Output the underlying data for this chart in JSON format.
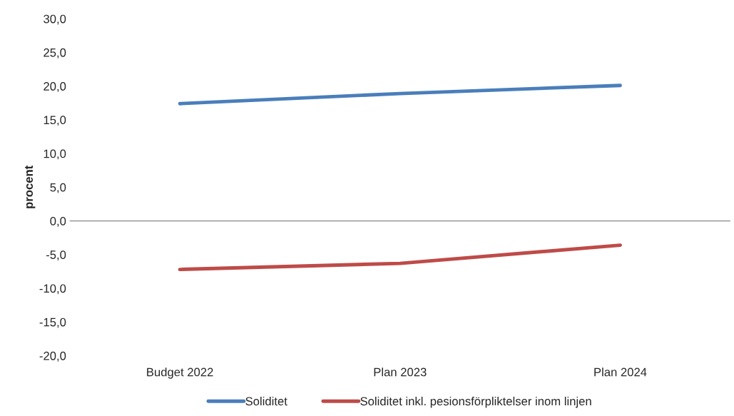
{
  "chart_data": {
    "type": "line",
    "ylabel": "procent",
    "categories": [
      "Budget 2022",
      "Plan 2023",
      "Plan 2024"
    ],
    "series": [
      {
        "name": "Soliditet",
        "color": "#4a7ebb",
        "values": [
          17.4,
          18.9,
          20.1
        ]
      },
      {
        "name": "Soliditet inkl. pesionsförpliktelser inom linjen",
        "color": "#be4b48",
        "values": [
          -7.2,
          -6.3,
          -3.6
        ]
      }
    ],
    "ylim": [
      -20,
      30
    ],
    "yticks": [
      {
        "value": -20,
        "label": "-20,0"
      },
      {
        "value": -15,
        "label": "-15,0"
      },
      {
        "value": -10,
        "label": "-10,0"
      },
      {
        "value": -5,
        "label": "-5,0"
      },
      {
        "value": 0,
        "label": "0,0"
      },
      {
        "value": 5,
        "label": "5,0"
      },
      {
        "value": 10,
        "label": "10,0"
      },
      {
        "value": 15,
        "label": "15,0"
      },
      {
        "value": 20,
        "label": "20,0"
      },
      {
        "value": 25,
        "label": "25,0"
      },
      {
        "value": 30,
        "label": "30,0"
      }
    ],
    "ref_lines": [
      {
        "axis": "y",
        "value": 0,
        "color": "#868686"
      }
    ],
    "grid": false,
    "legend": "bottom",
    "marker": "none",
    "line_style": "solid"
  }
}
